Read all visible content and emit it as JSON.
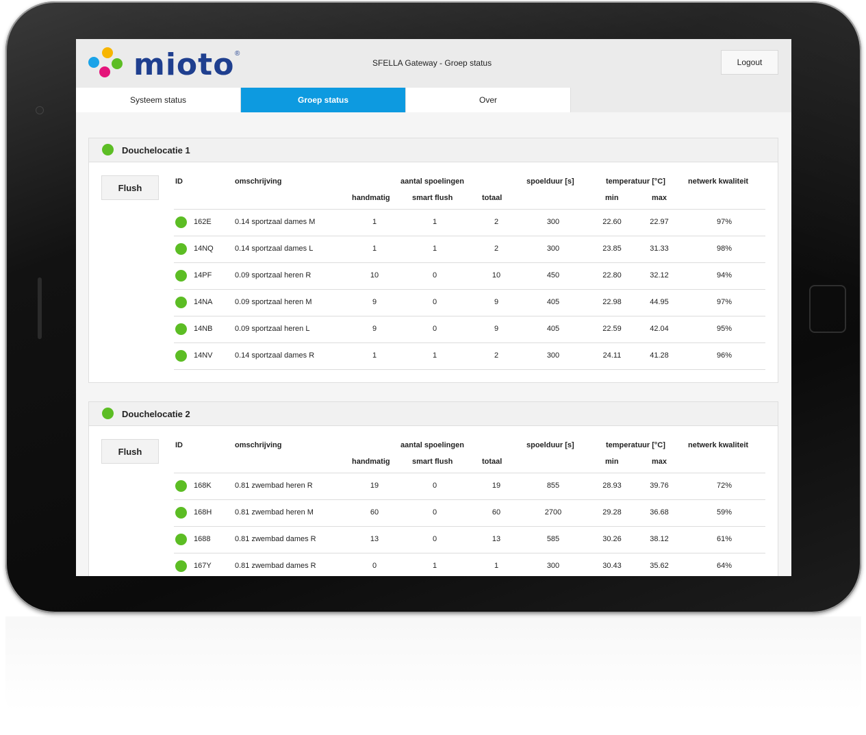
{
  "header": {
    "logo_text": "mioto",
    "logo_reg": "®",
    "title": "SFELLA Gateway - Groep status",
    "logout_label": "Logout"
  },
  "tabs": [
    {
      "label": "Systeem status",
      "active": false
    },
    {
      "label": "Groep status",
      "active": true
    },
    {
      "label": "Over",
      "active": false
    }
  ],
  "columns": {
    "id": "ID",
    "omschrijving": "omschrijving",
    "aantal": "aantal spoelingen",
    "handmatig": "handmatig",
    "smart_flush": "smart flush",
    "totaal": "totaal",
    "spoelduur": "spoelduur [s]",
    "temperatuur": "temperatuur [°C]",
    "min": "min",
    "max": "max",
    "netwerk": "netwerk kwaliteit"
  },
  "groups": [
    {
      "title": "Douchelocatie 1",
      "flush_label": "Flush",
      "status_color": "#5cbd24",
      "rows": [
        {
          "id": "162E",
          "desc": "0.14 sportzaal dames M",
          "handmatig": "1",
          "smart": "1",
          "totaal": "2",
          "spoelduur": "300",
          "min": "22.60",
          "max": "22.97",
          "netwerk": "97%"
        },
        {
          "id": "14NQ",
          "desc": "0.14 sportzaal dames L",
          "handmatig": "1",
          "smart": "1",
          "totaal": "2",
          "spoelduur": "300",
          "min": "23.85",
          "max": "31.33",
          "netwerk": "98%"
        },
        {
          "id": "14PF",
          "desc": "0.09 sportzaal heren R",
          "handmatig": "10",
          "smart": "0",
          "totaal": "10",
          "spoelduur": "450",
          "min": "22.80",
          "max": "32.12",
          "netwerk": "94%"
        },
        {
          "id": "14NA",
          "desc": "0.09 sportzaal heren M",
          "handmatig": "9",
          "smart": "0",
          "totaal": "9",
          "spoelduur": "405",
          "min": "22.98",
          "max": "44.95",
          "netwerk": "97%"
        },
        {
          "id": "14NB",
          "desc": "0.09 sportzaal heren L",
          "handmatig": "9",
          "smart": "0",
          "totaal": "9",
          "spoelduur": "405",
          "min": "22.59",
          "max": "42.04",
          "netwerk": "95%"
        },
        {
          "id": "14NV",
          "desc": "0.14 sportzaal dames R",
          "handmatig": "1",
          "smart": "1",
          "totaal": "2",
          "spoelduur": "300",
          "min": "24.11",
          "max": "41.28",
          "netwerk": "96%"
        }
      ]
    },
    {
      "title": "Douchelocatie 2",
      "flush_label": "Flush",
      "status_color": "#5cbd24",
      "rows": [
        {
          "id": "168K",
          "desc": "0.81 zwembad heren R",
          "handmatig": "19",
          "smart": "0",
          "totaal": "19",
          "spoelduur": "855",
          "min": "28.93",
          "max": "39.76",
          "netwerk": "72%"
        },
        {
          "id": "168H",
          "desc": "0.81 zwembad heren M",
          "handmatig": "60",
          "smart": "0",
          "totaal": "60",
          "spoelduur": "2700",
          "min": "29.28",
          "max": "36.68",
          "netwerk": "59%"
        },
        {
          "id": "1688",
          "desc": "0.81 zwembad dames R",
          "handmatig": "13",
          "smart": "0",
          "totaal": "13",
          "spoelduur": "585",
          "min": "30.26",
          "max": "38.12",
          "netwerk": "61%"
        },
        {
          "id": "167Y",
          "desc": "0.81 zwembad dames R",
          "handmatig": "0",
          "smart": "1",
          "totaal": "1",
          "spoelduur": "300",
          "min": "30.43",
          "max": "35.62",
          "netwerk": "64%"
        }
      ]
    }
  ]
}
